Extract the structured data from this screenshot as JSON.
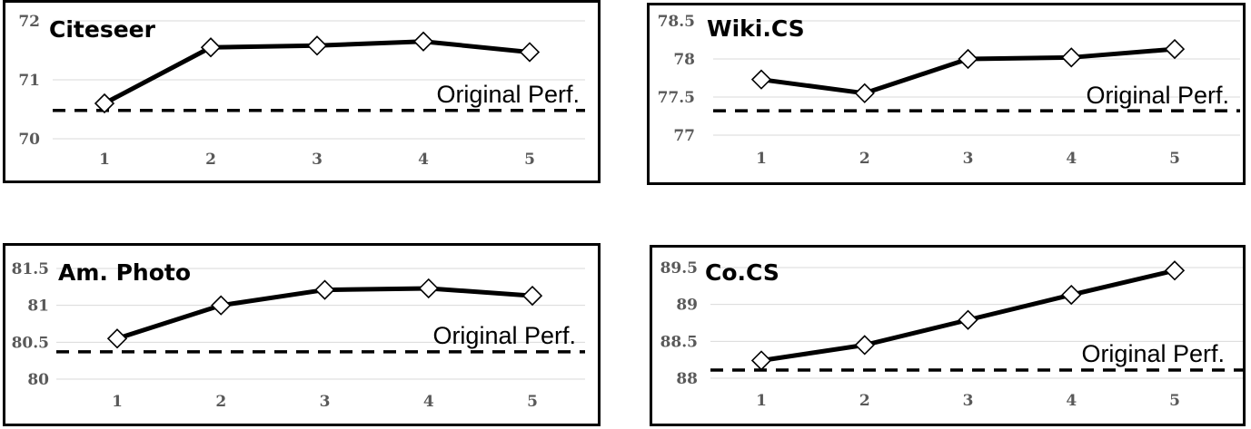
{
  "chart_data": [
    {
      "type": "line",
      "title": "Citeseer",
      "x": [
        1,
        2,
        3,
        4,
        5
      ],
      "values": [
        70.6,
        71.55,
        71.58,
        71.65,
        71.47
      ],
      "baseline": 70.48,
      "baseline_label": "Original Perf.",
      "yticks": [
        70,
        71,
        72
      ],
      "ylim": [
        70,
        72
      ],
      "grid": true,
      "color": "#000000",
      "marker": "diamond"
    },
    {
      "type": "line",
      "title": "Wiki.CS",
      "x": [
        1,
        2,
        3,
        4,
        5
      ],
      "values": [
        77.73,
        77.55,
        78.0,
        78.02,
        78.13
      ],
      "baseline": 77.32,
      "baseline_label": "Original Perf.",
      "yticks": [
        77,
        77.5,
        78,
        78.5
      ],
      "ylim": [
        77,
        78.5
      ],
      "grid": true,
      "color": "#000000",
      "marker": "diamond"
    },
    {
      "type": "line",
      "title": "Am. Photo",
      "x": [
        1,
        2,
        3,
        4,
        5
      ],
      "values": [
        80.55,
        81.0,
        81.21,
        81.23,
        81.13
      ],
      "baseline": 80.37,
      "baseline_label": "Original Perf.",
      "yticks": [
        80,
        80.5,
        81,
        81.5
      ],
      "ylim": [
        80,
        81.5
      ],
      "grid": true,
      "color": "#000000",
      "marker": "diamond"
    },
    {
      "type": "line",
      "title": "Co.CS",
      "x": [
        1,
        2,
        3,
        4,
        5
      ],
      "values": [
        88.24,
        88.45,
        88.79,
        89.13,
        89.46
      ],
      "baseline": 88.11,
      "baseline_label": "Original Perf.",
      "yticks": [
        88,
        88.5,
        89,
        89.5
      ],
      "ylim": [
        88,
        89.5
      ],
      "grid": true,
      "color": "#000000",
      "marker": "diamond"
    }
  ]
}
